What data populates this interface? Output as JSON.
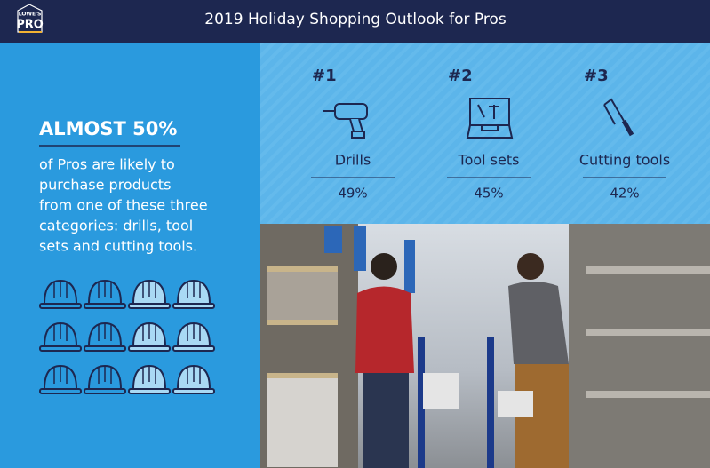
{
  "header": {
    "logo_top": "LOWE'S",
    "logo_bottom": "PRO",
    "title": "2019 Holiday Shopping Outlook for Pros"
  },
  "left": {
    "headline": "ALMOST 50%",
    "text_lines": [
      "of Pros are likely to",
      "purchase products",
      "from one of these three",
      "categories: drills, tool",
      "sets and cutting tools."
    ]
  },
  "items": [
    {
      "rank": "#1",
      "label": "Drills",
      "value": "49%"
    },
    {
      "rank": "#2",
      "label": "Tool sets",
      "value": "45%"
    },
    {
      "rank": "#3",
      "label": "Cutting tools",
      "value": "42%"
    }
  ]
}
